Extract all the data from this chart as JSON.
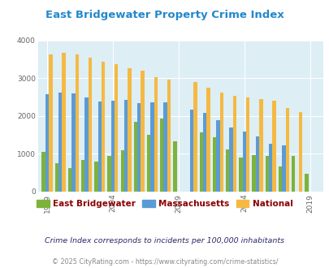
{
  "title": "East Bridgewater Property Crime Index",
  "years": [
    1999,
    2000,
    2001,
    2002,
    2003,
    2004,
    2005,
    2006,
    2007,
    2008,
    2009,
    2010,
    2011,
    2012,
    2013,
    2014,
    2015,
    2016,
    2017,
    2018,
    2019
  ],
  "east_bridgewater": [
    1050,
    750,
    630,
    830,
    800,
    950,
    1100,
    1850,
    1490,
    1920,
    1320,
    null,
    1570,
    1430,
    1110,
    890,
    960,
    950,
    660,
    950,
    480
  ],
  "massachusetts": [
    2580,
    2620,
    2600,
    2480,
    2380,
    2400,
    2420,
    2330,
    2360,
    2360,
    null,
    2160,
    2070,
    1880,
    1700,
    1580,
    1460,
    1270,
    1220,
    null,
    null
  ],
  "national": [
    3620,
    3660,
    3620,
    3530,
    3440,
    3370,
    3250,
    3200,
    3020,
    2960,
    null,
    2890,
    2750,
    2620,
    2530,
    2490,
    2450,
    2410,
    2200,
    2110,
    null
  ],
  "eb_color": "#7db33a",
  "ma_color": "#5b9bd5",
  "nat_color": "#f5b942",
  "plot_bg": "#ddeef5",
  "title_color": "#2288cc",
  "xlabel_ticks": [
    1999,
    2004,
    2009,
    2014,
    2019
  ],
  "footnote1": "Crime Index corresponds to incidents per 100,000 inhabitants",
  "footnote2": "© 2025 CityRating.com - https://www.cityrating.com/crime-statistics/",
  "legend_labels": [
    "East Bridgewater",
    "Massachusetts",
    "National"
  ],
  "legend_text_color": "#8b0000"
}
